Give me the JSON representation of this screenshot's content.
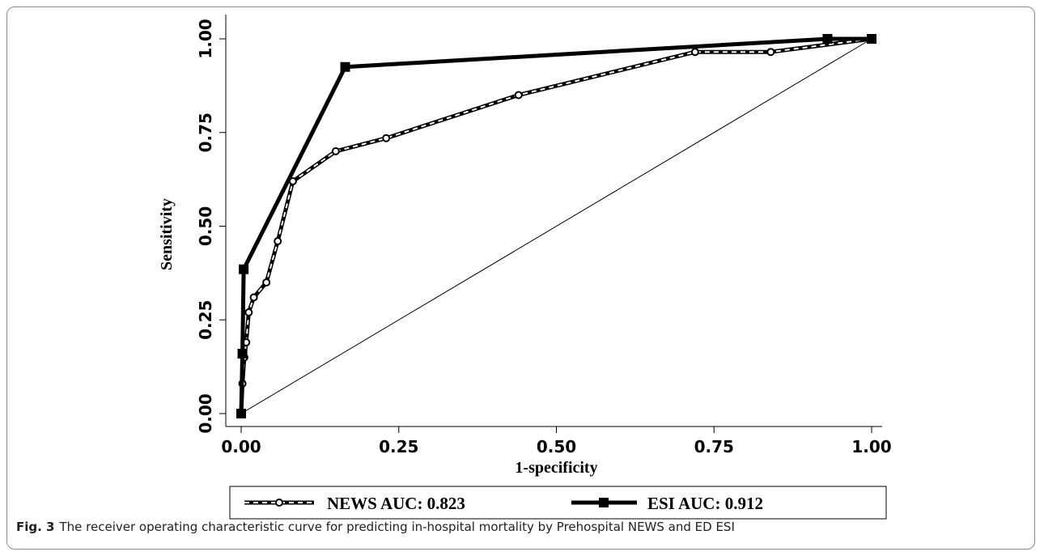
{
  "caption": {
    "label": "Fig. 3",
    "text": "The receiver operating characteristic curve for predicting in-hospital mortality by Prehospital NEWS and ED ESI"
  },
  "chart_data": {
    "type": "line",
    "title": "",
    "xlabel": "1-specificity",
    "ylabel": "Sensitivity",
    "xlim": [
      0,
      1
    ],
    "ylim": [
      0,
      1
    ],
    "xticks": [
      "0.00",
      "0.25",
      "0.50",
      "0.75",
      "1.00"
    ],
    "yticks": [
      "0.00",
      "0.25",
      "0.50",
      "0.75",
      "1.00"
    ],
    "grid": false,
    "legend_position": "bottom",
    "reference_line": {
      "x": [
        0,
        1
      ],
      "y": [
        0,
        1
      ]
    },
    "colors": {
      "esi": "#000000",
      "news": "#000000",
      "reference": "#000000"
    },
    "series": [
      {
        "name": "NEWS AUC: 0.823",
        "style": "dashed-double-with-circles",
        "x": [
          0,
          0.002,
          0.005,
          0.008,
          0.012,
          0.02,
          0.04,
          0.058,
          0.082,
          0.15,
          0.23,
          0.44,
          0.72,
          0.84,
          1.0
        ],
        "y": [
          0,
          0.08,
          0.15,
          0.19,
          0.27,
          0.31,
          0.35,
          0.46,
          0.62,
          0.7,
          0.735,
          0.85,
          0.965,
          0.965,
          1.0
        ]
      },
      {
        "name": "ESI AUC: 0.912",
        "style": "solid-thick-with-squares",
        "x": [
          0,
          0.002,
          0.004,
          0.165,
          0.93,
          1.0
        ],
        "y": [
          0,
          0.16,
          0.385,
          0.925,
          1.0,
          1.0
        ]
      }
    ]
  }
}
